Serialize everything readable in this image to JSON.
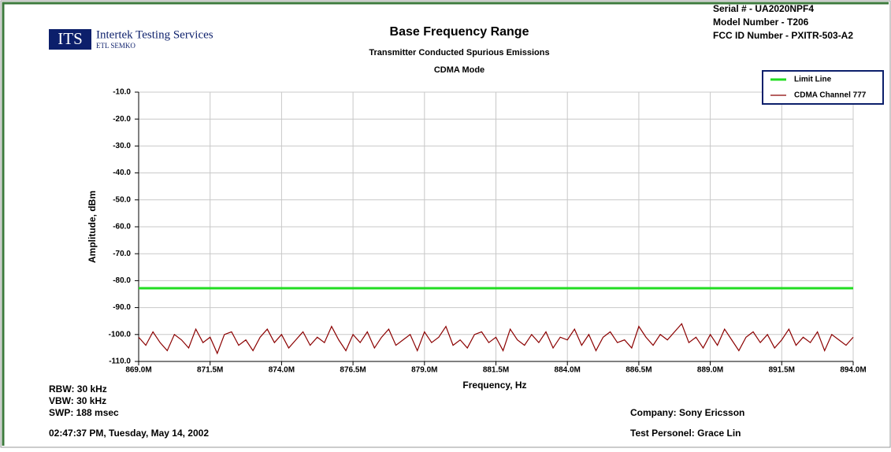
{
  "chart_data": {
    "type": "line",
    "title": "Base Frequency Range",
    "subtitle": [
      "Transmitter Conducted Spurious Emissions",
      "CDMA Mode"
    ],
    "logo": {
      "mark": "ITS",
      "name": "Intertek Testing Services",
      "sub": "ETL SEMKO"
    },
    "info": [
      "Serial # - UA2020NPF4",
      "Model Number - T206",
      "FCC ID Number - PXITR-503-A2"
    ],
    "xlabel": "Frequency, Hz",
    "ylabel": "Amplitude, dBm",
    "footer_left": [
      "RBW: 30 kHz",
      "VBW: 30 kHz",
      "SWP: 188 msec",
      "02:47:37 PM, Tuesday, May 14, 2002"
    ],
    "footer_right": [
      "Company: Sony Ericsson",
      "Test Personel: Grace Lin"
    ],
    "xlim": [
      869000000,
      894000000
    ],
    "ylim": [
      -110,
      -10
    ],
    "grid": true,
    "legend": "top-right",
    "xticks": [
      {
        "value": 869000000,
        "label": "869.0M"
      },
      {
        "value": 871500000,
        "label": "871.5M"
      },
      {
        "value": 874000000,
        "label": "874.0M"
      },
      {
        "value": 876500000,
        "label": "876.5M"
      },
      {
        "value": 879000000,
        "label": "879.0M"
      },
      {
        "value": 881500000,
        "label": "881.5M"
      },
      {
        "value": 884000000,
        "label": "884.0M"
      },
      {
        "value": 886500000,
        "label": "886.5M"
      },
      {
        "value": 889000000,
        "label": "889.0M"
      },
      {
        "value": 891500000,
        "label": "891.5M"
      },
      {
        "value": 894000000,
        "label": "894.0M"
      }
    ],
    "yticks": [
      {
        "value": -10,
        "label": "-10.0"
      },
      {
        "value": -20,
        "label": "-20.0"
      },
      {
        "value": -30,
        "label": "-30.0"
      },
      {
        "value": -40,
        "label": "-40.0"
      },
      {
        "value": -50,
        "label": "-50.0"
      },
      {
        "value": -60,
        "label": "-60.0"
      },
      {
        "value": -70,
        "label": "-70.0"
      },
      {
        "value": -80,
        "label": "-80.0"
      },
      {
        "value": -90,
        "label": "-90.0"
      },
      {
        "value": -100,
        "label": "-100.0"
      },
      {
        "value": -110,
        "label": "-110.0"
      }
    ],
    "series": [
      {
        "name": "Limit Line",
        "color": "#22dd22",
        "width": 3,
        "x": [
          869000000,
          894000000
        ],
        "values": [
          -82.8,
          -82.8
        ]
      },
      {
        "name": "CDMA Channel 777",
        "color": "#8b0000",
        "width": 1.2,
        "x": [
          869000000,
          869250000,
          869500000,
          869750000,
          870000000,
          870250000,
          870500000,
          870750000,
          871000000,
          871250000,
          871500000,
          871750000,
          872000000,
          872250000,
          872500000,
          872750000,
          873000000,
          873250000,
          873500000,
          873750000,
          874000000,
          874250000,
          874500000,
          874750000,
          875000000,
          875250000,
          875500000,
          875750000,
          876000000,
          876250000,
          876500000,
          876750000,
          877000000,
          877250000,
          877500000,
          877750000,
          878000000,
          878250000,
          878500000,
          878750000,
          879000000,
          879250000,
          879500000,
          879750000,
          880000000,
          880250000,
          880500000,
          880750000,
          881000000,
          881250000,
          881500000,
          881750000,
          882000000,
          882250000,
          882500000,
          882750000,
          883000000,
          883250000,
          883500000,
          883750000,
          884000000,
          884250000,
          884500000,
          884750000,
          885000000,
          885250000,
          885500000,
          885750000,
          886000000,
          886250000,
          886500000,
          886750000,
          887000000,
          887250000,
          887500000,
          887750000,
          888000000,
          888250000,
          888500000,
          888750000,
          889000000,
          889250000,
          889500000,
          889750000,
          890000000,
          890250000,
          890500000,
          890750000,
          891000000,
          891250000,
          891500000,
          891750000,
          892000000,
          892250000,
          892500000,
          892750000,
          893000000,
          893250000,
          893500000,
          893750000,
          894000000
        ],
        "values": [
          -101,
          -104,
          -99,
          -103,
          -106,
          -100,
          -102,
          -105,
          -98,
          -103,
          -101,
          -107,
          -100,
          -99,
          -104,
          -102,
          -106,
          -101,
          -98,
          -103,
          -100,
          -105,
          -102,
          -99,
          -104,
          -101,
          -103,
          -97,
          -102,
          -106,
          -100,
          -103,
          -99,
          -105,
          -101,
          -98,
          -104,
          -102,
          -100,
          -106,
          -99,
          -103,
          -101,
          -97,
          -104,
          -102,
          -105,
          -100,
          -99,
          -103,
          -101,
          -106,
          -98,
          -102,
          -104,
          -100,
          -103,
          -99,
          -105,
          -101,
          -102,
          -98,
          -104,
          -100,
          -106,
          -101,
          -99,
          -103,
          -102,
          -105,
          -97,
          -101,
          -104,
          -100,
          -102,
          -99,
          -96,
          -103,
          -101,
          -105,
          -100,
          -104,
          -98,
          -102,
          -106,
          -101,
          -99,
          -103,
          -100,
          -105,
          -102,
          -98,
          -104,
          -101,
          -103,
          -99,
          -106,
          -100,
          -102,
          -104,
          -101
        ]
      }
    ]
  }
}
